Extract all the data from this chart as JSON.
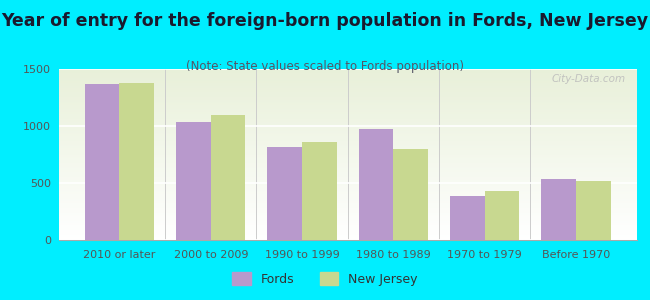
{
  "title": "Year of entry for the foreign-born population in Fords, New Jersey",
  "subtitle": "(Note: State values scaled to Fords population)",
  "categories": [
    "2010 or later",
    "2000 to 2009",
    "1990 to 1999",
    "1980 to 1989",
    "1970 to 1979",
    "Before 1970"
  ],
  "fords_values": [
    1370,
    1035,
    820,
    970,
    385,
    535
  ],
  "nj_values": [
    1380,
    1095,
    860,
    800,
    430,
    515
  ],
  "fords_color": "#b899cc",
  "nj_color": "#c8d890",
  "background_outer": "#00eeff",
  "background_inner_top": "#ffffff",
  "background_inner_bottom": "#e8f0d8",
  "ylim": [
    0,
    1500
  ],
  "yticks": [
    0,
    500,
    1000,
    1500
  ],
  "bar_width": 0.38,
  "title_fontsize": 12.5,
  "subtitle_fontsize": 8.5,
  "tick_fontsize": 8,
  "legend_fontsize": 9,
  "watermark_text": "City-Data.com"
}
